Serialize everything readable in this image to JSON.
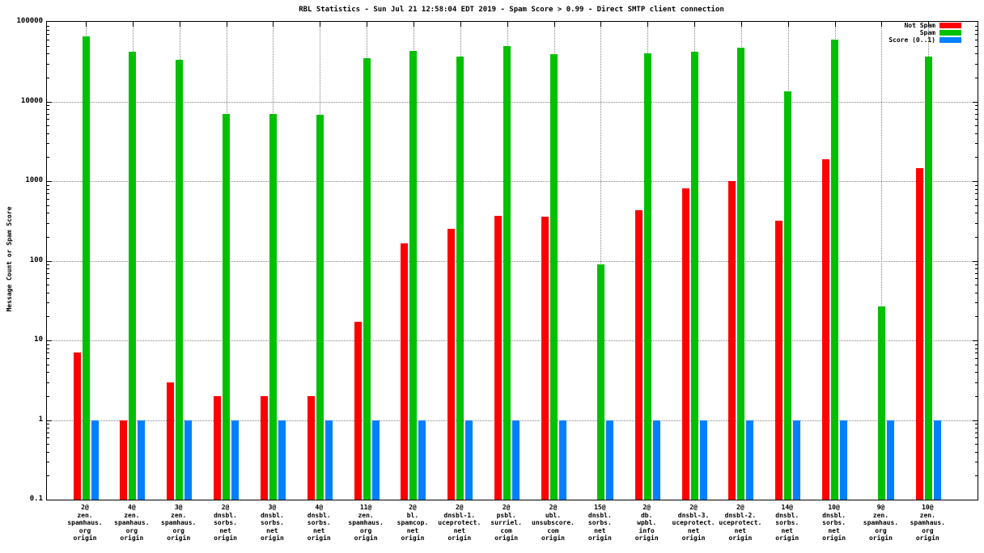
{
  "chart_data": {
    "type": "bar",
    "title": "RBL Statistics - Sun Jul 21 12:58:04 EDT 2019 - Spam Score > 0.99 - Direct SMTP client connection",
    "ylabel": "Message Count or Spam Score",
    "yscale": "log",
    "ylim": [
      0.1,
      100000
    ],
    "ytick_labels": [
      "0.1",
      "1",
      "10",
      "100",
      "1000",
      "10000",
      "100000"
    ],
    "grid": "dotted",
    "legend_position": "top-right",
    "categories": [
      [
        "2@",
        "zen.",
        "spamhaus.",
        "org",
        "origin"
      ],
      [
        "4@",
        "zen.",
        "spamhaus.",
        "org",
        "origin"
      ],
      [
        "3@",
        "zen.",
        "spamhaus.",
        "org",
        "origin"
      ],
      [
        "2@",
        "dnsbl.",
        "sorbs.",
        "net",
        "origin"
      ],
      [
        "3@",
        "dnsbl.",
        "sorbs.",
        "net",
        "origin"
      ],
      [
        "4@",
        "dnsbl.",
        "sorbs.",
        "net",
        "origin"
      ],
      [
        "11@",
        "zen.",
        "spamhaus.",
        "org",
        "origin"
      ],
      [
        "2@",
        "bl.",
        "spamcop.",
        "net",
        "origin"
      ],
      [
        "2@",
        "dnsbl-1.",
        "uceprotect.",
        "net",
        "origin"
      ],
      [
        "2@",
        "psbl.",
        "surriel.",
        "com",
        "origin"
      ],
      [
        "2@",
        "ubl.",
        "unsubscore.",
        "com",
        "origin"
      ],
      [
        "15@",
        "dnsbl.",
        "sorbs.",
        "net",
        "origin"
      ],
      [
        "2@",
        "db.",
        "wpbl.",
        "info",
        "origin"
      ],
      [
        "2@",
        "dnsbl-3.",
        "uceprotect.",
        "net",
        "origin"
      ],
      [
        "2@",
        "dnsbl-2.",
        "uceprotect.",
        "net",
        "origin"
      ],
      [
        "14@",
        "dnsbl.",
        "sorbs.",
        "net",
        "origin"
      ],
      [
        "10@",
        "dnsbl.",
        "sorbs.",
        "net",
        "origin"
      ],
      [
        "9@",
        "zen.",
        "spamhaus.",
        "org",
        "origin"
      ],
      [
        "10@",
        "zen.",
        "spamhaus.",
        "org",
        "origin"
      ]
    ],
    "series": [
      {
        "name": "Not Spam",
        "color": "#ff0000",
        "values": [
          7,
          1,
          3,
          2,
          2,
          2,
          17,
          165,
          250,
          370,
          360,
          null,
          430,
          820,
          1000,
          320,
          1900,
          null,
          1450
        ]
      },
      {
        "name": "Spam",
        "color": "#00c000",
        "values": [
          65000,
          42000,
          33000,
          7000,
          7000,
          6800,
          35000,
          43000,
          37000,
          50000,
          39000,
          90,
          40000,
          42000,
          47000,
          13500,
          60000,
          27,
          37000
        ]
      },
      {
        "name": "Score (0..1)",
        "color": "#0080ff",
        "values": [
          1,
          1,
          1,
          1,
          1,
          1,
          1,
          1,
          1,
          1,
          1,
          1,
          1,
          1,
          1,
          1,
          1,
          1,
          1
        ]
      }
    ]
  }
}
